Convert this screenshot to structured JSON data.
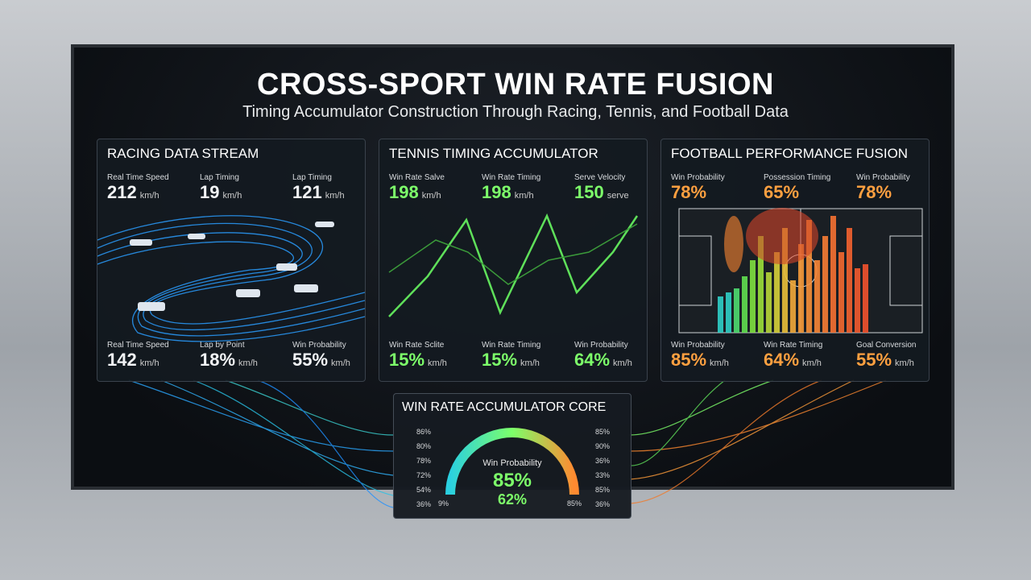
{
  "header": {
    "title": "CROSS-SPORT WIN RATE FUSION",
    "subtitle": "Timing Accumulator Construction Through Racing, Tennis, and Football Data"
  },
  "panels": [
    {
      "title": "RACING DATA STREAM",
      "top_metrics": [
        {
          "label": "Real Time Speed",
          "value": "212",
          "unit": "km/h"
        },
        {
          "label": "Lap Timing",
          "value": "19",
          "unit": "km/h"
        },
        {
          "label": "Lap Timing",
          "value": "121",
          "unit": "km/h"
        }
      ],
      "bottom_metrics": [
        {
          "label": "Real Time Speed",
          "value": "142",
          "unit": "km/h"
        },
        {
          "label": "Lap by Point",
          "value": "18%",
          "unit": "km/h"
        },
        {
          "label": "Win Probability",
          "value": "55%",
          "unit": "km/h"
        }
      ]
    },
    {
      "title": "TENNIS TIMING ACCUMULATOR",
      "top_metrics": [
        {
          "label": "Win Rate Salve",
          "value": "198",
          "unit": "km/h"
        },
        {
          "label": "Win Rate Timing",
          "value": "198",
          "unit": "km/h"
        },
        {
          "label": "Serve Velocity",
          "value": "150",
          "unit": "serve"
        }
      ],
      "bottom_metrics": [
        {
          "label": "Win Rate Sclite",
          "value": "15%",
          "unit": "km/h"
        },
        {
          "label": "Win Rate Timing",
          "value": "15%",
          "unit": "km/h"
        },
        {
          "label": "Win Probability",
          "value": "64%",
          "unit": "km/h"
        }
      ]
    },
    {
      "title": "FOOTBALL PERFORMANCE FUSION",
      "top_metrics": [
        {
          "label": "Win Probability",
          "value": "78%",
          "unit": ""
        },
        {
          "label": "Possession Timing",
          "value": "65%",
          "unit": ""
        },
        {
          "label": "Win Probability",
          "value": "78%",
          "unit": ""
        }
      ],
      "bottom_metrics": [
        {
          "label": "Win Probability",
          "value": "85%",
          "unit": "km/h"
        },
        {
          "label": "Win Rate Timing",
          "value": "64%",
          "unit": "km/h"
        },
        {
          "label": "Goal Conversion",
          "value": "55%",
          "unit": "km/h"
        }
      ]
    }
  ],
  "core": {
    "title": "WIN RATE ACCUMULATOR CORE",
    "gauge_label": "Win Probability",
    "primary": "85%",
    "secondary": "62%",
    "left_scale": [
      "86%",
      "80%",
      "78%",
      "72%",
      "54%",
      "36%"
    ],
    "right_scale": [
      "85%",
      "90%",
      "36%",
      "33%",
      "85%",
      "36%"
    ],
    "min_label": "9%",
    "max_label": "85%"
  }
}
